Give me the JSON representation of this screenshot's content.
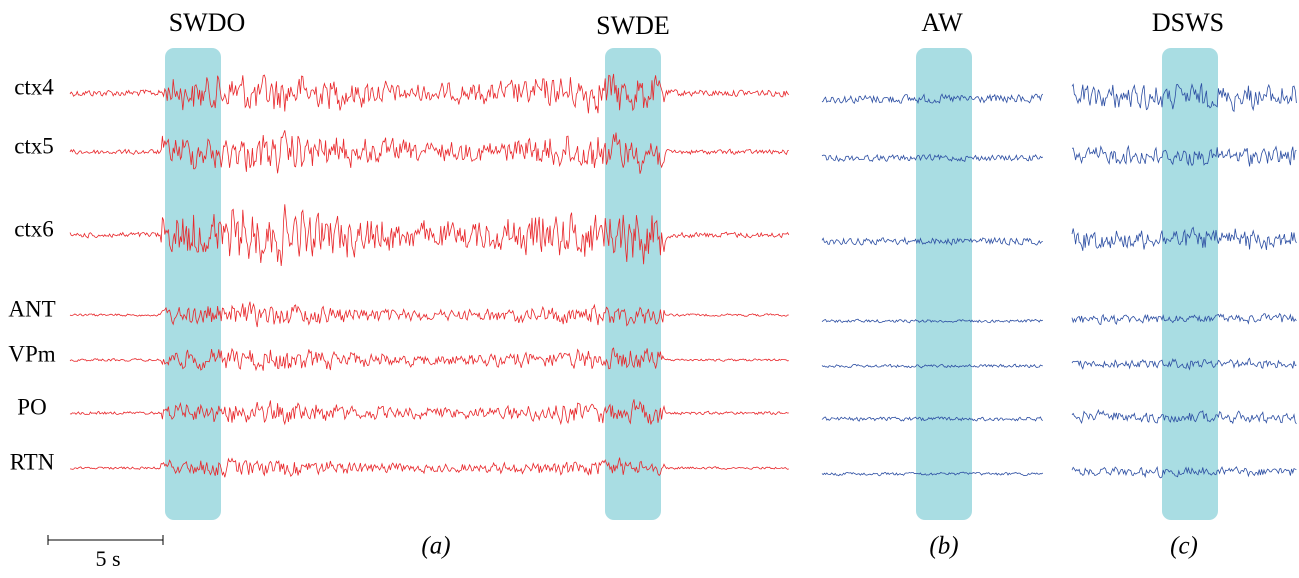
{
  "markers": [
    {
      "label": "SWDO",
      "panel": "a"
    },
    {
      "label": "SWDE",
      "panel": "a"
    },
    {
      "label": "AW",
      "panel": "b"
    },
    {
      "label": "DSWS",
      "panel": "c"
    }
  ],
  "channels": [
    "ctx4",
    "ctx5",
    "ctx6",
    "ANT",
    "VPm",
    "PO",
    "RTN"
  ],
  "panels": [
    "(a)",
    "(b)",
    "(c)"
  ],
  "scale_bar": "5 s"
}
